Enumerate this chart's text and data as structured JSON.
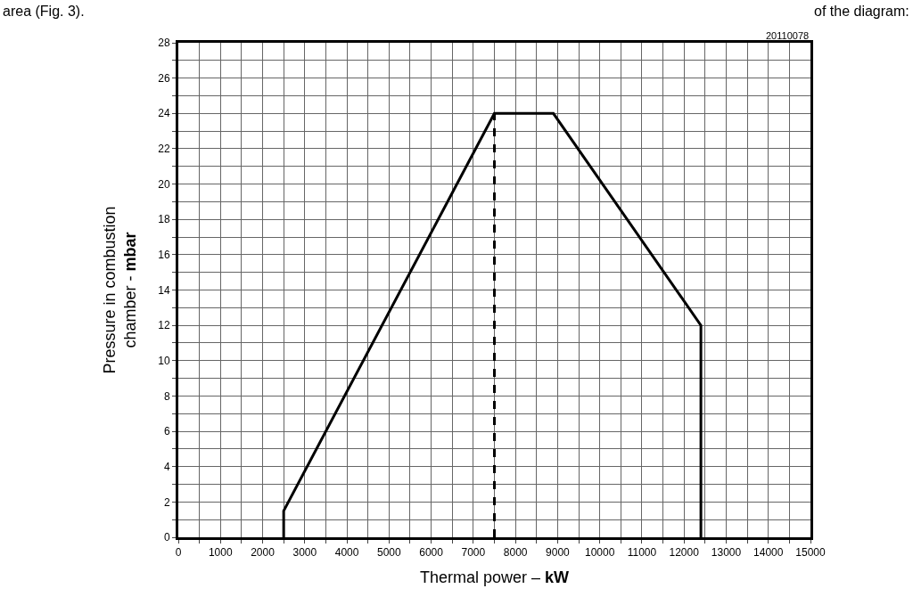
{
  "chart_data": {
    "type": "line",
    "xlabel": "Thermal power – kW",
    "ylabel": "Pressure in combustion chamber - mbar",
    "annotations": [
      "20110078",
      "area (Fig. 3).",
      "of the diagram:"
    ],
    "series": [
      {
        "color": "#000000",
        "line_style": "solid",
        "x": [
          2500,
          2500,
          7500,
          8900,
          12400,
          12400
        ],
        "values": [
          0,
          1.5,
          24,
          24,
          12,
          0
        ]
      },
      {
        "color": "#000000",
        "line_style": "dashed",
        "x": [
          7500,
          7500
        ],
        "values": [
          0,
          24
        ]
      }
    ],
    "xlim": [
      0,
      15000
    ],
    "ylim": [
      0,
      28
    ],
    "xticks": [
      0,
      {
        "value": 500,
        "label": null
      },
      1000,
      {
        "value": 1500,
        "label": null
      },
      2000,
      {
        "value": 2500,
        "label": null
      },
      3000,
      {
        "value": 3500,
        "label": null
      },
      4000,
      {
        "value": 4500,
        "label": null
      },
      5000,
      {
        "value": 5500,
        "label": null
      },
      6000,
      {
        "value": 6500,
        "label": null
      },
      7000,
      {
        "value": 7500,
        "label": null
      },
      8000,
      {
        "value": 8500,
        "label": null
      },
      9000,
      {
        "value": 9500,
        "label": null
      },
      10000,
      {
        "value": 10500,
        "label": null
      },
      11000,
      {
        "value": 11500,
        "label": null
      },
      12000,
      {
        "value": 12500,
        "label": null
      },
      13000,
      {
        "value": 13500,
        "label": null
      },
      14000,
      {
        "value": 14500,
        "label": null
      },
      15000
    ],
    "yticks": [
      0,
      {
        "value": 1,
        "label": null
      },
      2,
      {
        "value": 3,
        "label": null
      },
      4,
      {
        "value": 5,
        "label": null
      },
      6,
      {
        "value": 7,
        "label": null
      },
      8,
      {
        "value": 9,
        "label": null
      },
      10,
      {
        "value": 11,
        "label": null
      },
      12,
      {
        "value": 13,
        "label": null
      },
      14,
      {
        "value": 15,
        "label": null
      },
      16,
      {
        "value": 17,
        "label": null
      },
      18,
      {
        "value": 19,
        "label": null
      },
      20,
      {
        "value": 21,
        "label": null
      },
      22,
      {
        "value": 23,
        "label": null
      },
      24,
      {
        "value": 25,
        "label": null
      },
      26,
      {
        "value": 27,
        "label": null
      },
      28
    ],
    "grid": true,
    "marker": "none"
  }
}
